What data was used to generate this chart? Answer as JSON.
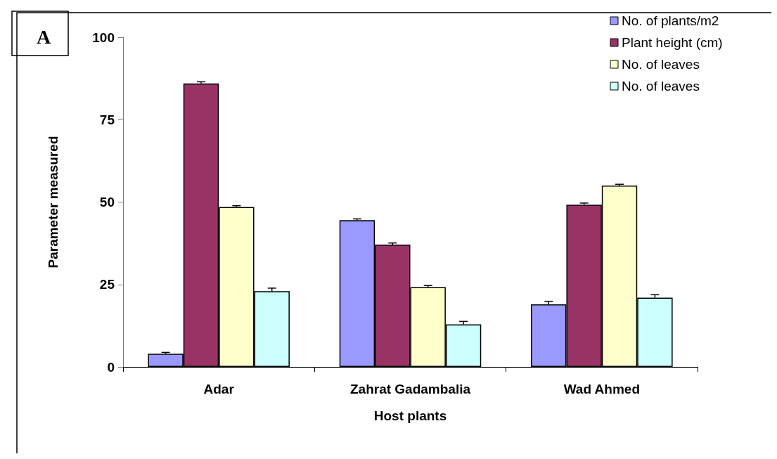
{
  "chart_data": {
    "type": "bar",
    "title": "A",
    "xlabel": "Host plants",
    "ylabel": "Parameter measured",
    "categories": [
      "Adar",
      "Zahrat Gadambalia",
      "Wad Ahmed"
    ],
    "series": [
      {
        "name": "No. of plants/m2",
        "color": "#9999ff",
        "values": [
          4.0,
          44.5,
          19.0
        ],
        "errors": [
          [
            4.0,
            4.4
          ],
          [
            44.5,
            44.9
          ],
          [
            19.0,
            19.9
          ]
        ]
      },
      {
        "name": "Plant height (cm)",
        "color": "#993366",
        "values": [
          86.0,
          37.1,
          49.2
        ],
        "errors": [
          [
            86.0,
            86.5
          ],
          [
            37.1,
            37.6
          ],
          [
            49.2,
            49.7
          ]
        ]
      },
      {
        "name": "No. of leaves",
        "color": "#ffffcc",
        "values": [
          48.5,
          24.2,
          55.0
        ],
        "errors": [
          [
            48.5,
            48.9
          ],
          [
            24.2,
            24.7
          ],
          [
            55.0,
            55.4
          ]
        ]
      },
      {
        "name": "No. of leaves",
        "color": "#ccffff",
        "values": [
          23.0,
          12.9,
          21.0
        ],
        "errors": [
          [
            23.0,
            23.9
          ],
          [
            12.9,
            13.8
          ],
          [
            21.0,
            21.9
          ]
        ]
      }
    ],
    "ylim": [
      0,
      100
    ],
    "yticks": [
      0,
      25,
      50,
      75,
      100
    ],
    "grid": false,
    "legend": "top right"
  }
}
